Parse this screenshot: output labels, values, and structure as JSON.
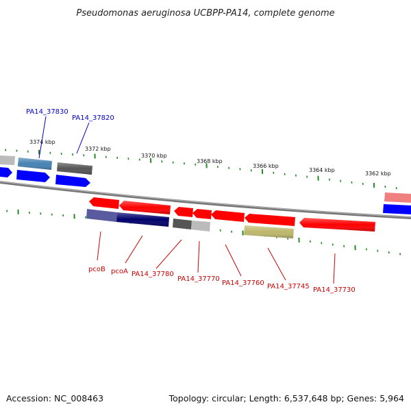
{
  "header": {
    "title": "Pseudomonas aeruginosa UCBPP-PA14, complete genome"
  },
  "footer": {
    "accession": "Accession: NC_008463",
    "summary": "Topology: circular; Length: 6,537,648 bp; Genes: 5,964"
  },
  "ruler": {
    "labels": [
      "3374 kbp",
      "3372 kbp",
      "3370 kbp",
      "3368 kbp",
      "3366 kbp",
      "3364 kbp",
      "3362 kbp"
    ],
    "tick_color": "#228b22"
  },
  "genes": {
    "top": [
      {
        "label": "PA14_37830",
        "color": "#0000cc"
      },
      {
        "label": "PA14_37820",
        "color": "#0000cc"
      }
    ],
    "bottom": [
      {
        "label": "pcoB",
        "color": "#cc0000"
      },
      {
        "label": "pcoA",
        "color": "#cc0000"
      },
      {
        "label": "PA14_37780",
        "color": "#cc0000"
      },
      {
        "label": "PA14_37770",
        "color": "#cc0000"
      },
      {
        "label": "PA14_37760",
        "color": "#cc0000"
      },
      {
        "label": "PA14_37745",
        "color": "#cc0000"
      },
      {
        "label": "PA14_37730",
        "color": "#cc0000"
      }
    ]
  },
  "colors": {
    "backbone": "#808080",
    "feature_red": "#ff0000",
    "feature_blue": "#0000ff",
    "feature_navy": "#00006b",
    "feature_steel": "#4682b4",
    "feature_gray": "#555555",
    "feature_lightgray": "#bbbbbb",
    "feature_khaki": "#bdb76b",
    "feature_pink": "#f08080",
    "feature_slate": "#5a5aa0"
  }
}
